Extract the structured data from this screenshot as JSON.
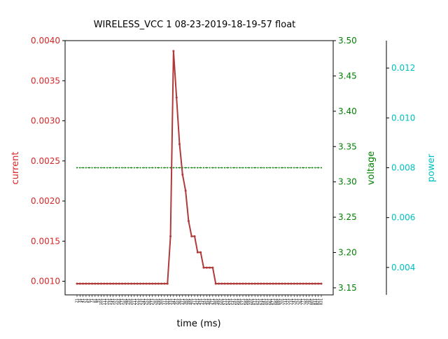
{
  "chart_data": {
    "type": "line",
    "title": "WIRELESS_VCC   1   08-23-2019-18-19-57   float",
    "xlabel": "time (ms)",
    "axes": {
      "current": {
        "label": "current",
        "ylim": [
          0.00083,
          0.004
        ],
        "ticks": [
          "0.0010",
          "0.0015",
          "0.0020",
          "0.0025",
          "0.0030",
          "0.0035",
          "0.0040"
        ],
        "color": "#d62728"
      },
      "voltage": {
        "label": "voltage",
        "ylim": [
          3.14,
          3.5
        ],
        "ticks": [
          "3.15",
          "3.20",
          "3.25",
          "3.30",
          "3.35",
          "3.40",
          "3.45",
          "3.50"
        ],
        "color": "#008000"
      },
      "power": {
        "label": "power",
        "ylim": [
          0.0029,
          0.0131
        ],
        "ticks": [
          "0.004",
          "0.006",
          "0.008",
          "0.010",
          "0.012"
        ],
        "color": "#00bfbf"
      }
    },
    "x_tick_labels": [
      "21",
      "31",
      "41",
      "51",
      "61",
      "71",
      "81",
      "91",
      "101",
      "111",
      "121",
      "131",
      "141",
      "151",
      "161",
      "171",
      "181",
      "191",
      "201",
      "211",
      "221",
      "231",
      "241",
      "251",
      "261",
      "271",
      "281",
      "291",
      "301",
      "311",
      "321",
      "331",
      "341",
      "351",
      "361",
      "371",
      "381",
      "391",
      "401",
      "411",
      "421",
      "431",
      "441",
      "451",
      "461",
      "471",
      "481",
      "491",
      "501",
      "511",
      "521",
      "531",
      "541",
      "551",
      "561",
      "571",
      "581",
      "591",
      "601",
      "611",
      "621",
      "631",
      "641",
      "651",
      "661",
      "671",
      "681",
      "691",
      "701",
      "711",
      "721",
      "731",
      "741",
      "751",
      "761",
      "771",
      "781",
      "791",
      "801",
      "811",
      "821",
      "831"
    ],
    "series": [
      {
        "name": "current",
        "color": "#b03a3a",
        "values": [
          0.00097,
          0.00097,
          0.00097,
          0.00097,
          0.00097,
          0.00097,
          0.00097,
          0.00097,
          0.00097,
          0.00097,
          0.00097,
          0.00097,
          0.00097,
          0.00097,
          0.00097,
          0.00097,
          0.00097,
          0.00097,
          0.00097,
          0.00097,
          0.00097,
          0.00097,
          0.00097,
          0.00097,
          0.00097,
          0.00097,
          0.00097,
          0.00097,
          0.00097,
          0.00097,
          0.00097,
          0.00156,
          0.00387,
          0.00329,
          0.00271,
          0.00233,
          0.00213,
          0.00175,
          0.00156,
          0.00156,
          0.00136,
          0.00136,
          0.00117,
          0.00117,
          0.00117,
          0.00117,
          0.00097,
          0.00097,
          0.00097,
          0.00097,
          0.00097,
          0.00097,
          0.00097,
          0.00097,
          0.00097,
          0.00097,
          0.00097,
          0.00097,
          0.00097,
          0.00097,
          0.00097,
          0.00097,
          0.00097,
          0.00097,
          0.00097,
          0.00097,
          0.00097,
          0.00097,
          0.00097,
          0.00097,
          0.00097,
          0.00097,
          0.00097,
          0.00097,
          0.00097,
          0.00097,
          0.00097,
          0.00097,
          0.00097,
          0.00097,
          0.00097,
          0.00097
        ]
      },
      {
        "name": "voltage",
        "color": "#008000",
        "constant": 3.32,
        "points": 82
      }
    ]
  }
}
